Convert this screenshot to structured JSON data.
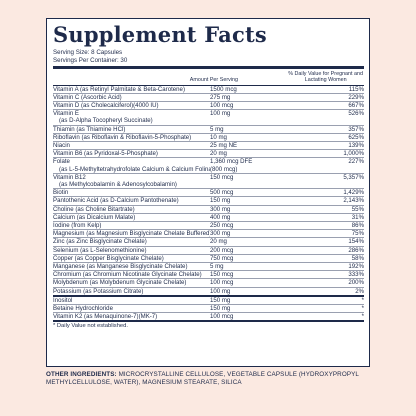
{
  "title": "Supplement Facts",
  "serving_size": "Serving Size: 8 Capsules",
  "servings_per_container": "Servings Per Container: 30",
  "col_amount": "Amount Per Serving",
  "col_dv": "% Daily Value for Pregnant and Lactating Women",
  "rows": [
    {
      "name": "Vitamin A (as Retinyl Palmitate & Beta-Carotene)",
      "sub": "",
      "amount": "1500 mcg",
      "sub_amount": "",
      "dv": "115%"
    },
    {
      "name": "Vitamin C (Ascorbic Acid)",
      "sub": "",
      "amount": "275 mg",
      "sub_amount": "",
      "dv": "229%"
    },
    {
      "name": "Vitamin D (as Cholecalciferol)(4000 IU)",
      "sub": "",
      "amount": "100 mcg",
      "sub_amount": "",
      "dv": "667%"
    },
    {
      "name": "Vitamin E",
      "sub": "(as D-Alpha Tocopheryl Succinate)",
      "amount": "100 mg",
      "sub_amount": "",
      "dv": "526%"
    },
    {
      "name": "Thiamin (as Thiamine HCl)",
      "sub": "",
      "amount": "5 mg",
      "sub_amount": "",
      "dv": "357%"
    },
    {
      "name": "Riboflavin (as Riboflavin & Riboflavin-5-Phosphate)",
      "sub": "",
      "amount": "10 mg",
      "sub_amount": "",
      "dv": "625%"
    },
    {
      "name": "Niacin",
      "sub": "",
      "amount": "25 mg NE",
      "sub_amount": "",
      "dv": "139%"
    },
    {
      "name": "Vitamin B6 (as Pyridoxal-5-Phosphate)",
      "sub": "",
      "amount": "20 mg",
      "sub_amount": "",
      "dv": "1,000%"
    },
    {
      "name": "Folate",
      "sub": "(as L-5-Methyltetrahydrofolate Calcium & Calcium Folinate)",
      "amount": "1,360 mcg DFE",
      "sub_amount": "(800 mcg)",
      "dv": "227%"
    },
    {
      "name": "Vitamin B12",
      "sub": "(as Methylcobalamin & Adenosylcobalamin)",
      "amount": "150 mcg",
      "sub_amount": "",
      "dv": "5,357%"
    },
    {
      "name": "Biotin",
      "sub": "",
      "amount": "500 mcg",
      "sub_amount": "",
      "dv": "1,429%"
    },
    {
      "name": "Pantothenic Acid (as D-Calcium Pantothenate)",
      "sub": "",
      "amount": "150 mg",
      "sub_amount": "",
      "dv": "2,143%"
    },
    {
      "name": "Choline (as Choline Bitartrate)",
      "sub": "",
      "amount": "300 mg",
      "sub_amount": "",
      "dv": "55%"
    },
    {
      "name": "Calcium (as Dicalcium Malate)",
      "sub": "",
      "amount": "400 mg",
      "sub_amount": "",
      "dv": "31%"
    },
    {
      "name": "Iodine (from Kelp)",
      "sub": "",
      "amount": "250 mcg",
      "sub_amount": "",
      "dv": "86%"
    },
    {
      "name": "Magnesium (as Magnesium Bisglycinate Chelate Buffered)",
      "sub": "",
      "amount": "300 mg",
      "sub_amount": "",
      "dv": "75%"
    },
    {
      "name": "Zinc (as Zinc Bisglycinate Chelate)",
      "sub": "",
      "amount": "20 mg",
      "sub_amount": "",
      "dv": "154%"
    },
    {
      "name": "Selenium (as L-Selenomethionine)",
      "sub": "",
      "amount": "200 mcg",
      "sub_amount": "",
      "dv": "286%"
    },
    {
      "name": "Copper (as Copper Bisglycinate Chelate)",
      "sub": "",
      "amount": "750 mcg",
      "sub_amount": "",
      "dv": "58%"
    },
    {
      "name": "Manganese (as Manganese Bisglycinate Chelate)",
      "sub": "",
      "amount": "5 mg",
      "sub_amount": "",
      "dv": "192%"
    },
    {
      "name": "Chromium (as Chromium Nicotinate Glycinate Chelate)",
      "sub": "",
      "amount": "150 mcg",
      "sub_amount": "",
      "dv": "333%"
    },
    {
      "name": "Molybdenum (as Molybdenum Glycinate Chelate)",
      "sub": "",
      "amount": "100 mcg",
      "sub_amount": "",
      "dv": "200%"
    },
    {
      "name": "Potassium (as Potassium Citrate)",
      "sub": "",
      "amount": "100 mg",
      "sub_amount": "",
      "dv": "2%"
    },
    {
      "name": "Inositol",
      "sub": "",
      "amount": "150 mg",
      "sub_amount": "",
      "dv": "*"
    },
    {
      "name": "Betaine Hydrochloride",
      "sub": "",
      "amount": "150 mg",
      "sub_amount": "",
      "dv": "*"
    },
    {
      "name": "Vitamin K2 (as Menaquinone-7)(MK-7)",
      "sub": "",
      "amount": "100 mcg",
      "sub_amount": "",
      "dv": "*"
    }
  ],
  "footnote": "* Daily Value not established.",
  "other_label": "Other ingredients:",
  "other_text": "Microcrystalline cellulose, vegetable capsule (hydroxypropyl methylcellulose, water), magnesium stearate, silica",
  "colors": {
    "ink": "#1e2a4a",
    "background": "#fbe9e1"
  }
}
